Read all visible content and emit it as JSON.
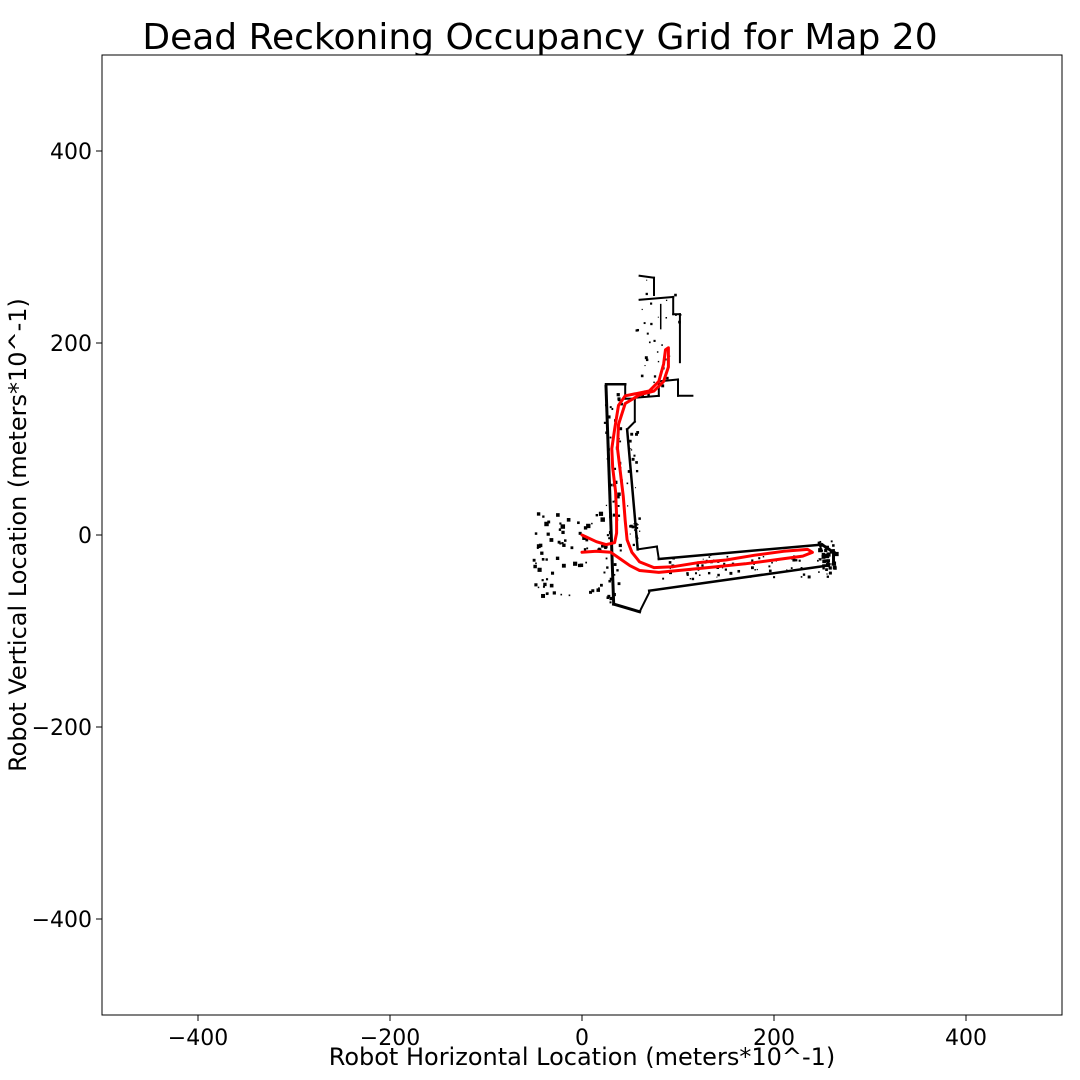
{
  "chart_data": {
    "type": "line",
    "title": "Dead Reckoning Occupancy Grid for Map 20",
    "xlabel": "Robot Horizontal Location (meters*10^-1)",
    "ylabel": "Robot Vertical Location (meters*10^-1)",
    "xlim": [
      -500,
      500
    ],
    "ylim": [
      -500,
      500
    ],
    "x_ticks": [
      -400,
      -200,
      0,
      200,
      400
    ],
    "y_ticks": [
      -400,
      -200,
      0,
      200,
      400
    ],
    "x_tick_labels": [
      "−400",
      "−200",
      "0",
      "200",
      "400"
    ],
    "y_tick_labels": [
      "−400",
      "−200",
      "0",
      "200",
      "400"
    ],
    "grid": false,
    "legend": "none",
    "colors": {
      "path": "#ff0000",
      "occupied": "#000000",
      "background": "#ffffff"
    },
    "series": [
      {
        "values": [
          [
            0,
            -18
          ],
          [
            15,
            -17
          ],
          [
            30,
            -18
          ],
          [
            40,
            -25
          ],
          [
            50,
            -32
          ],
          [
            60,
            -37
          ],
          [
            80,
            -39
          ],
          [
            110,
            -36
          ],
          [
            140,
            -33
          ],
          [
            170,
            -30
          ],
          [
            200,
            -26
          ],
          [
            230,
            -22
          ],
          [
            240,
            -18
          ],
          [
            235,
            -15
          ],
          [
            210,
            -17
          ],
          [
            180,
            -21
          ],
          [
            150,
            -26
          ],
          [
            120,
            -29
          ],
          [
            95,
            -33
          ],
          [
            75,
            -34
          ],
          [
            60,
            -28
          ],
          [
            52,
            -18
          ],
          [
            47,
            -5
          ],
          [
            45,
            15
          ],
          [
            43,
            40
          ],
          [
            40,
            65
          ],
          [
            37,
            90
          ],
          [
            38,
            115
          ],
          [
            45,
            137
          ],
          [
            60,
            146
          ],
          [
            75,
            150
          ],
          [
            85,
            160
          ],
          [
            90,
            175
          ],
          [
            90,
            195
          ],
          [
            87,
            193
          ],
          [
            85,
            178
          ],
          [
            80,
            160
          ],
          [
            70,
            150
          ],
          [
            55,
            147
          ],
          [
            45,
            145
          ],
          [
            38,
            135
          ],
          [
            34,
            110
          ],
          [
            31,
            90
          ],
          [
            32,
            70
          ],
          [
            35,
            45
          ],
          [
            36,
            20
          ],
          [
            36,
            2
          ],
          [
            34,
            -8
          ],
          [
            25,
            -10
          ],
          [
            15,
            -7
          ],
          [
            0,
            0
          ]
        ]
      }
    ],
    "occupied_regions": [
      {
        "x": [
          22,
          68
        ],
        "y": [
          -80,
          150
        ]
      },
      {
        "x": [
          54,
          262
        ],
        "y": [
          -45,
          -3
        ]
      },
      {
        "x": [
          55,
          105
        ],
        "y": [
          140,
          275
        ]
      },
      {
        "x": [
          -55,
          25
        ],
        "y": [
          -65,
          30
        ]
      }
    ]
  }
}
